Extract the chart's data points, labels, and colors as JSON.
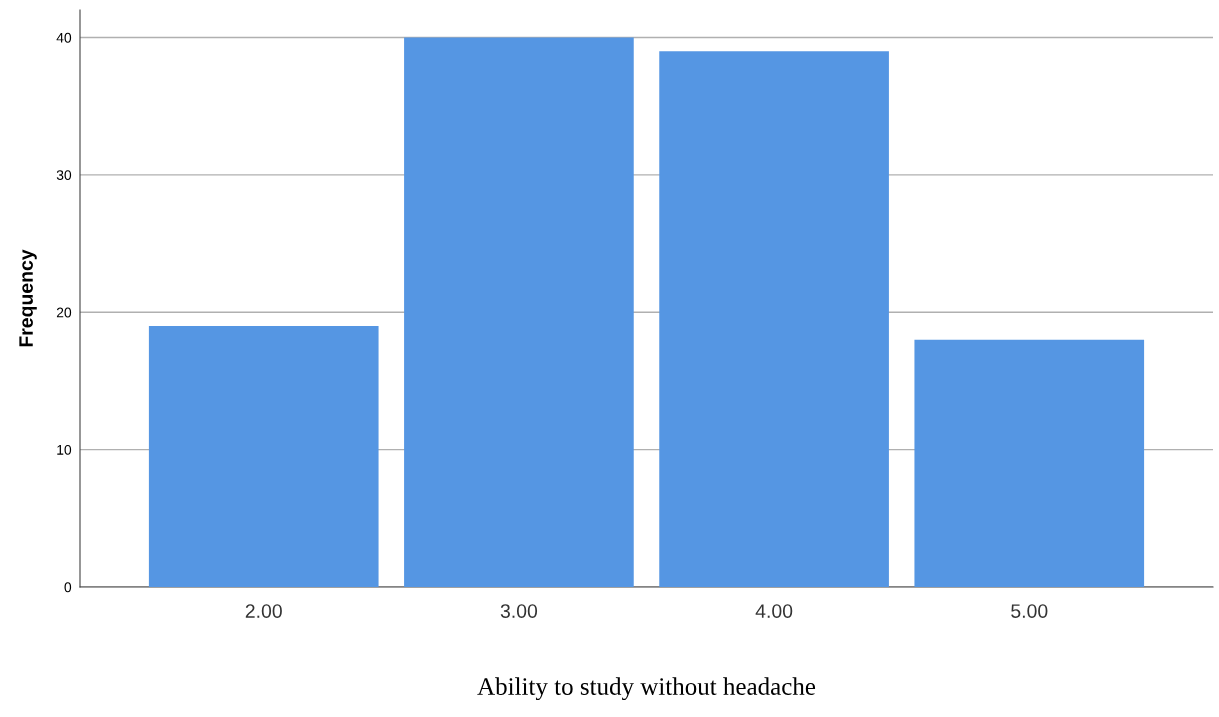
{
  "chart_data": {
    "type": "bar",
    "xlabel": "Ability to study without headache",
    "ylabel": "Frequency",
    "categories": [
      "2.00",
      "3.00",
      "4.00",
      "5.00"
    ],
    "values": [
      19,
      40,
      39,
      18
    ],
    "color": "#5596e3",
    "ylim": [
      0,
      42
    ],
    "yticks": [
      0,
      10,
      20,
      30,
      40
    ],
    "grid": "y",
    "legend": false
  }
}
